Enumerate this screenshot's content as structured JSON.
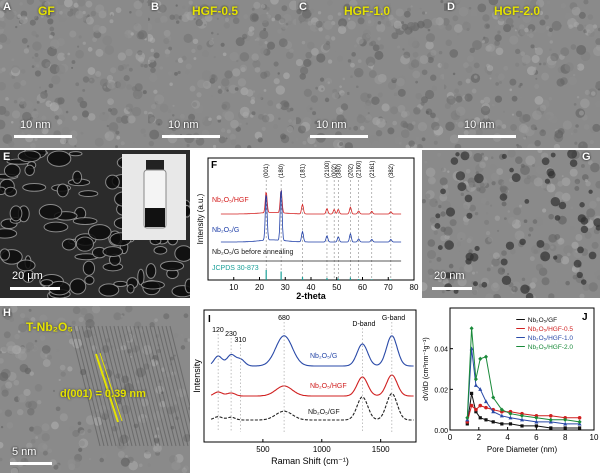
{
  "figure": {
    "panels": {
      "A": {
        "label": "A",
        "title": "GF",
        "scale": "10 nm"
      },
      "B": {
        "label": "B",
        "title": "HGF-0.5",
        "scale": "10 nm"
      },
      "C": {
        "label": "C",
        "title": "HGF-1.0",
        "scale": "10 nm"
      },
      "D": {
        "label": "D",
        "title": "HGF-2.0",
        "scale": "10 nm"
      },
      "E": {
        "label": "E",
        "scale": "20 μm"
      },
      "G": {
        "label": "G",
        "scale": "20 nm"
      },
      "H": {
        "label": "H",
        "title": "T-Nb₂O₅",
        "annotation": "d(001) = 0.39 nm",
        "scale": "5 nm"
      }
    }
  },
  "chart_data": [
    {
      "panel": "F",
      "type": "line",
      "xlabel": "2-theta",
      "ylabel": "Intensity (a.u.)",
      "xlim": [
        0,
        80
      ],
      "xticks": [
        10,
        20,
        30,
        40,
        50,
        60,
        70,
        80
      ],
      "peak_labels": [
        {
          "x": 22.6,
          "text": "(001)"
        },
        {
          "x": 28.4,
          "text": "(180)"
        },
        {
          "x": 36.7,
          "text": "(181)"
        },
        {
          "x": 46.2,
          "text": "(2100)"
        },
        {
          "x": 49.0,
          "text": "(002)"
        },
        {
          "x": 50.6,
          "text": "(380)"
        },
        {
          "x": 55.3,
          "text": "(202)"
        },
        {
          "x": 58.5,
          "text": "(2160)"
        },
        {
          "x": 63.6,
          "text": "(2161)"
        },
        {
          "x": 71.0,
          "text": "(382)"
        }
      ],
      "series": [
        {
          "name": "Nb₂O₅/HGF",
          "color": "#d42020",
          "peaks": [
            [
              22.6,
              55
            ],
            [
              28.4,
              60
            ],
            [
              36.7,
              25
            ],
            [
              46.2,
              14
            ],
            [
              49.0,
              12
            ],
            [
              50.6,
              12
            ],
            [
              55.3,
              18
            ],
            [
              58.5,
              8
            ],
            [
              63.6,
              7
            ],
            [
              71.0,
              6
            ]
          ]
        },
        {
          "name": "Nb₂O₅/G",
          "color": "#1f3fa8",
          "peaks": [
            [
              22.6,
              90
            ],
            [
              28.4,
              100
            ],
            [
              36.7,
              20
            ],
            [
              46.2,
              12
            ],
            [
              50.6,
              10
            ],
            [
              55.3,
              16
            ],
            [
              58.5,
              6
            ],
            [
              63.6,
              5
            ],
            [
              71.0,
              5
            ]
          ]
        },
        {
          "name": "Nb₂O₅/G before annealing",
          "color": "#222222",
          "peaks": []
        },
        {
          "name": "JCPDS 30-873",
          "color": "#1aa098",
          "peaks": [
            [
              22.6,
              100
            ],
            [
              28.4,
              85
            ],
            [
              36.7,
              30
            ],
            [
              46.2,
              20
            ],
            [
              50.6,
              15
            ],
            [
              55.3,
              25
            ],
            [
              58.5,
              10
            ],
            [
              63.6,
              8
            ],
            [
              71.0,
              8
            ]
          ]
        }
      ]
    },
    {
      "panel": "I",
      "type": "line",
      "xlabel": "Raman Shift (cm⁻¹)",
      "ylabel": "Intensity",
      "xlim": [
        0,
        1800
      ],
      "xticks": [
        500,
        1000,
        1500
      ],
      "annotations": [
        "120",
        "230",
        "310",
        "680",
        "D-band",
        "G-band"
      ],
      "series": [
        {
          "name": "Nb₂O₅/G",
          "color": "#2a4aa8",
          "peaks": [
            [
              120,
              18
            ],
            [
              230,
              20
            ],
            [
              310,
              12
            ],
            [
              680,
              55
            ],
            [
              1345,
              40
            ],
            [
              1595,
              55
            ]
          ]
        },
        {
          "name": "Nb₂O₅/HGF",
          "color": "#d02020",
          "peaks": [
            [
              120,
              8
            ],
            [
              230,
              6
            ],
            [
              680,
              20
            ],
            [
              1345,
              38
            ],
            [
              1595,
              42
            ]
          ]
        },
        {
          "name": "Nb₂O₅/GF",
          "color": "#222222",
          "peaks": [
            [
              120,
              6
            ],
            [
              230,
              5
            ],
            [
              680,
              16
            ],
            [
              1345,
              42
            ],
            [
              1595,
              48
            ]
          ]
        }
      ]
    },
    {
      "panel": "J",
      "type": "scatter",
      "xlabel": "Pore Diameter (nm)",
      "ylabel": "dV/dD (cm³nm⁻¹g⁻¹)",
      "xlim": [
        0,
        10
      ],
      "ylim": [
        0,
        0.06
      ],
      "xticks": [
        0,
        2,
        4,
        6,
        8,
        10
      ],
      "yticks": [
        0.0,
        0.02,
        0.04
      ],
      "series": [
        {
          "name": "Nb₂O₅/GF",
          "color": "#111111",
          "x": [
            1.2,
            1.5,
            1.8,
            2.1,
            2.5,
            3.0,
            3.6,
            4.2,
            5.0,
            6.0,
            7.0,
            8.0,
            9.0
          ],
          "y": [
            0.003,
            0.018,
            0.009,
            0.006,
            0.005,
            0.004,
            0.003,
            0.003,
            0.002,
            0.002,
            0.001,
            0.001,
            0.001
          ]
        },
        {
          "name": "Nb₂O₅/HGF-0.5",
          "color": "#d02020",
          "x": [
            1.2,
            1.5,
            1.8,
            2.1,
            2.5,
            3.0,
            3.6,
            4.2,
            5.0,
            6.0,
            7.0,
            8.0,
            9.0
          ],
          "y": [
            0.004,
            0.012,
            0.01,
            0.012,
            0.011,
            0.01,
            0.009,
            0.009,
            0.008,
            0.007,
            0.007,
            0.006,
            0.006
          ]
        },
        {
          "name": "Nb₂O₅/HGF-1.0",
          "color": "#2a4aa8",
          "x": [
            1.2,
            1.5,
            1.8,
            2.1,
            2.5,
            3.0,
            3.6,
            4.2,
            5.0,
            6.0,
            7.0,
            8.0,
            9.0
          ],
          "y": [
            0.005,
            0.04,
            0.022,
            0.02,
            0.014,
            0.009,
            0.007,
            0.006,
            0.005,
            0.004,
            0.004,
            0.003,
            0.003
          ]
        },
        {
          "name": "Nb₂O₅/HGF-2.0",
          "color": "#1a8a3a",
          "x": [
            1.2,
            1.5,
            1.8,
            2.1,
            2.5,
            3.0,
            3.6,
            4.2,
            5.0,
            6.0,
            7.0,
            8.0,
            9.0
          ],
          "y": [
            0.006,
            0.05,
            0.025,
            0.035,
            0.036,
            0.016,
            0.01,
            0.008,
            0.007,
            0.006,
            0.005,
            0.005,
            0.004
          ]
        }
      ]
    }
  ]
}
